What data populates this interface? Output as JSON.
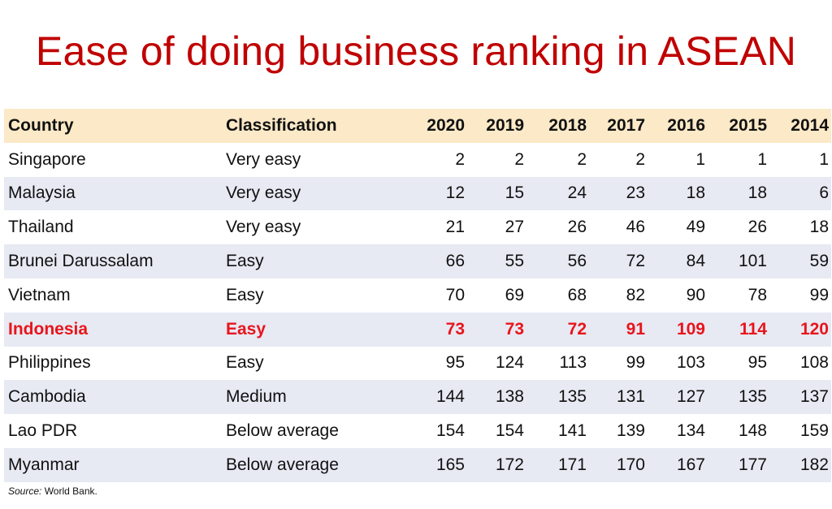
{
  "title": "Ease of doing business ranking in ASEAN",
  "table": {
    "headers": [
      "Country",
      "Classification",
      "2020",
      "2019",
      "2018",
      "2017",
      "2016",
      "2015",
      "2014"
    ],
    "rows": [
      {
        "country": "Singapore",
        "classification": "Very easy",
        "ranks": [
          "2",
          "2",
          "2",
          "2",
          "1",
          "1",
          "1"
        ],
        "highlight": false
      },
      {
        "country": "Malaysia",
        "classification": "Very easy",
        "ranks": [
          "12",
          "15",
          "24",
          "23",
          "18",
          "18",
          "6"
        ],
        "highlight": false
      },
      {
        "country": "Thailand",
        "classification": "Very easy",
        "ranks": [
          "21",
          "27",
          "26",
          "46",
          "49",
          "26",
          "18"
        ],
        "highlight": false
      },
      {
        "country": "Brunei Darussalam",
        "classification": "Easy",
        "ranks": [
          "66",
          "55",
          "56",
          "72",
          "84",
          "101",
          "59"
        ],
        "highlight": false
      },
      {
        "country": "Vietnam",
        "classification": "Easy",
        "ranks": [
          "70",
          "69",
          "68",
          "82",
          "90",
          "78",
          "99"
        ],
        "highlight": false
      },
      {
        "country": "Indonesia",
        "classification": "Easy",
        "ranks": [
          "73",
          "73",
          "72",
          "91",
          "109",
          "114",
          "120"
        ],
        "highlight": true
      },
      {
        "country": "Philippines",
        "classification": "Easy",
        "ranks": [
          "95",
          "124",
          "113",
          "99",
          "103",
          "95",
          "108"
        ],
        "highlight": false
      },
      {
        "country": "Cambodia",
        "classification": "Medium",
        "ranks": [
          "144",
          "138",
          "135",
          "131",
          "127",
          "135",
          "137"
        ],
        "highlight": false
      },
      {
        "country": "Lao PDR",
        "classification": "Below average",
        "ranks": [
          "154",
          "154",
          "141",
          "139",
          "134",
          "148",
          "159"
        ],
        "highlight": false
      },
      {
        "country": "Myanmar",
        "classification": "Below average",
        "ranks": [
          "165",
          "172",
          "171",
          "170",
          "167",
          "177",
          "182"
        ],
        "highlight": false
      }
    ]
  },
  "source": {
    "label": "Source:",
    "text": " World Bank."
  },
  "colors": {
    "title": "#c00000",
    "highlight": "#e8151b",
    "header_bg": "#fbe9c7",
    "band_bg": "#e7e9f3"
  }
}
